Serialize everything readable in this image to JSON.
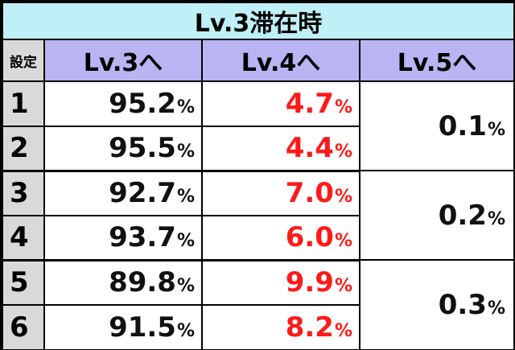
{
  "title": "Lv.3滞在時",
  "headers": {
    "setting": "設定",
    "lv3": "Lv.3へ",
    "lv4": "Lv.4へ",
    "lv5": "Lv.5へ"
  },
  "percent_sign": "%",
  "colors": {
    "title_bg": "#bff0f7",
    "header_bg": "#b9b5f3",
    "setting_bg": "#d9d9d9",
    "lv4_text": "#ff1a1a"
  },
  "rows": [
    {
      "setting": "1",
      "lv3": "95.2",
      "lv4": "4.7"
    },
    {
      "setting": "2",
      "lv3": "95.5",
      "lv4": "4.4"
    },
    {
      "setting": "3",
      "lv3": "92.7",
      "lv4": "7.0"
    },
    {
      "setting": "4",
      "lv3": "93.7",
      "lv4": "6.0"
    },
    {
      "setting": "5",
      "lv3": "89.8",
      "lv4": "9.9"
    },
    {
      "setting": "6",
      "lv3": "91.5",
      "lv4": "8.2"
    }
  ],
  "lv5_groups": [
    {
      "settings": "1-2",
      "value": "0.1"
    },
    {
      "settings": "3-4",
      "value": "0.2"
    },
    {
      "settings": "5-6",
      "value": "0.3"
    }
  ]
}
